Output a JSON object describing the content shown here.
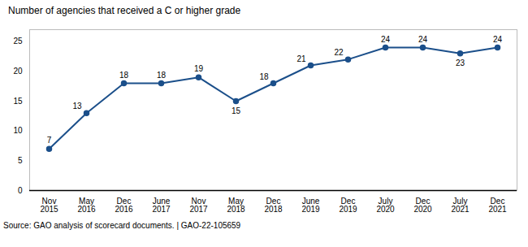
{
  "chart_data": {
    "type": "line",
    "title": "Number of agencies that received a C or higher grade",
    "source": "Source: GAO analysis of scorecard documents.  |  GAO-22-105659",
    "categories": [
      "Nov\n2015",
      "May\n2016",
      "Dec\n2016",
      "June\n2017",
      "Nov\n2017",
      "May\n2018",
      "Dec\n2018",
      "June\n2019",
      "Dec\n2019",
      "July\n2020",
      "Dec\n2020",
      "July\n2021",
      "Dec\n2021"
    ],
    "values": [
      7,
      13,
      18,
      18,
      19,
      15,
      18,
      21,
      22,
      24,
      24,
      23,
      24
    ],
    "color": "#1B4F8A",
    "marker": "circle",
    "ylim": [
      0,
      27
    ],
    "yticks": [
      0,
      5,
      10,
      15,
      20,
      25
    ],
    "grid": false,
    "data_labels": true
  }
}
